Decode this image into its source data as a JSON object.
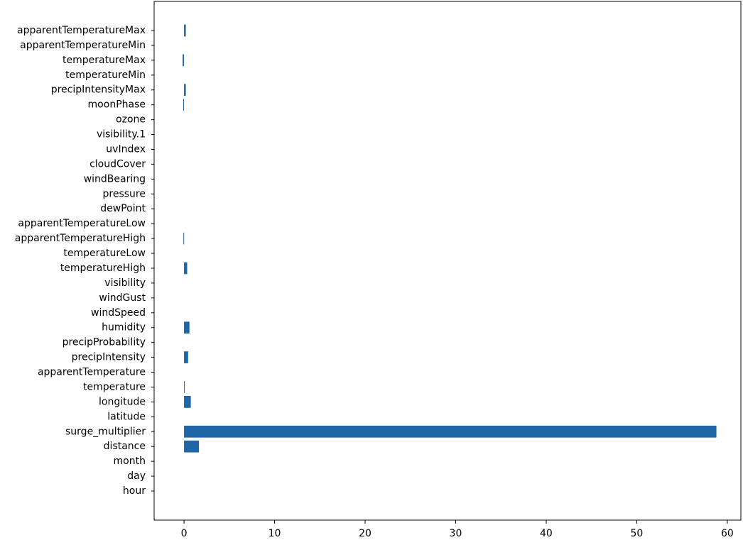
{
  "chart_data": {
    "type": "bar",
    "orientation": "horizontal",
    "title": "",
    "xlabel": "",
    "ylabel": "",
    "xlim": [
      -3.3,
      61.5
    ],
    "xticks": [
      0,
      10,
      20,
      30,
      40,
      50,
      60
    ],
    "grid": false,
    "bar_color": "#1f66a6",
    "categories": [
      "apparentTemperatureMax",
      "apparentTemperatureMin",
      "temperatureMax",
      "temperatureMin",
      "precipIntensityMax",
      "moonPhase",
      "ozone",
      "visibility.1",
      "uvIndex",
      "cloudCover",
      "windBearing",
      "pressure",
      "dewPoint",
      "apparentTemperatureLow",
      "apparentTemperatureHigh",
      "temperatureLow",
      "temperatureHigh",
      "visibility",
      "windGust",
      "windSpeed",
      "humidity",
      "precipProbability",
      "precipIntensity",
      "apparentTemperature",
      "temperature",
      "longitude",
      "latitude",
      "surge_multiplier",
      "distance",
      "month",
      "day",
      "hour"
    ],
    "values": [
      0.2,
      0.0,
      -0.15,
      0.0,
      0.2,
      -0.08,
      0.0,
      0.0,
      0.0,
      0.0,
      0.0,
      0.0,
      0.0,
      0.0,
      -0.07,
      0.0,
      0.35,
      0.0,
      0.0,
      0.0,
      0.6,
      0.0,
      0.45,
      0.0,
      0.07,
      0.75,
      0.0,
      58.8,
      1.65,
      0.0,
      0.0,
      0.0
    ]
  }
}
